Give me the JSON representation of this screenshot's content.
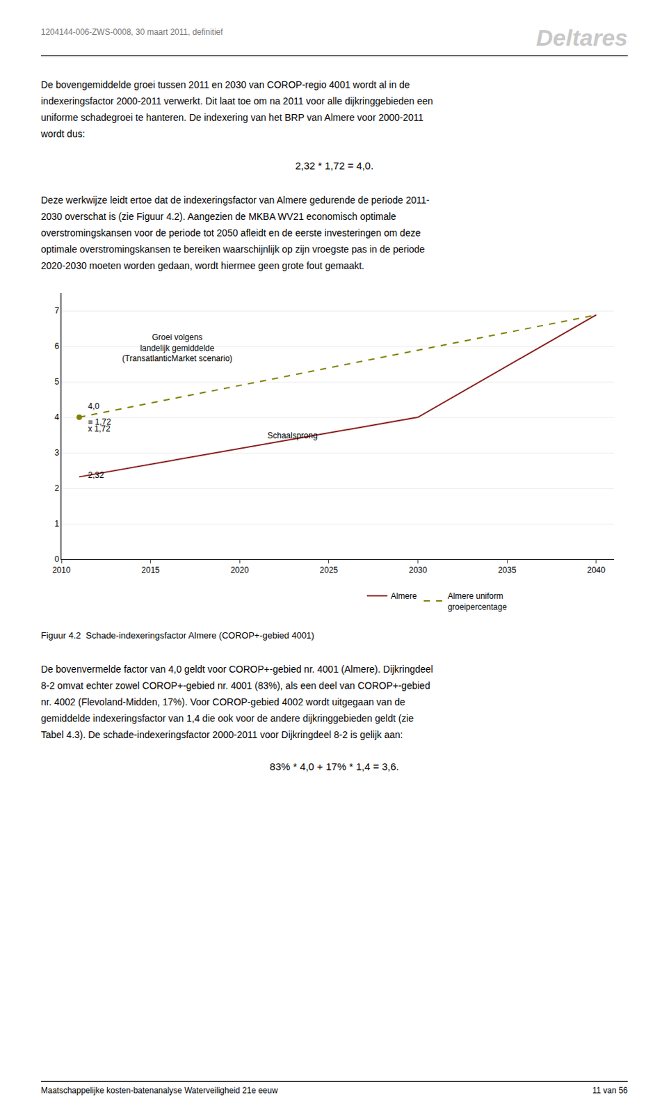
{
  "header_left": "1204144-006-ZWS-0008, 30 maart 2011, definitief",
  "header_right": "Deltares",
  "paragraphs_before": [
    [
      "De bovengemiddelde groei tussen 2011 en 2030 van COROP-regio 4001 wordt al in de",
      "indexeringsfactor 2000-2011 verwerkt. Dit laat toe om na 2011 voor alle dijkringgebieden een",
      "uniforme schadegroei te hanteren. De indexering van het BRP van Almere voor 2000-2011",
      "wordt dus:"
    ],
    [
      "Deze werkwijze leidt ertoe dat de indexeringsfactor van Almere gedurende de periode 2011-",
      "2030 overschat is (zie Figuur 4.2). Aangezien de MKBA WV21 economisch optimale",
      "overstromingskansen voor de periode tot 2050 afleidt en de eerste investeringen om deze",
      "optimale overstromingskansen te bereiken waarschijnlijk op zijn vroegste pas in de periode",
      "2020-2030 moeten worden gedaan, wordt hiermee geen grote fout gemaakt."
    ]
  ],
  "formula1": "2,32 * 1,72 = 4,0.",
  "caption": "Figuur 4.2  Schade-indexeringsfactor Almere (COROP+-gebied 4001)",
  "paragraph_after": [
    "De bovenvermelde factor van 4,0 geldt voor COROP+-gebied nr. 4001 (Almere). Dijkringdeel",
    "8-2 omvat echter zowel COROP+-gebied nr. 4001 (83%), als een deel van COROP+-gebied",
    "nr. 4002 (Flevoland-Midden, 17%). Voor COROP-gebied 4002 wordt uitgegaan van de",
    "gemiddelde indexeringsfactor van 1,4 die ook voor de andere dijkringgebieden geldt (zie",
    "Tabel 4.3). De schade-indexeringsfactor 2000-2011 voor Dijkringdeel 8-2 is gelijk aan:"
  ],
  "formula2": "83% * 4,0 + 17% * 1,4 = 3,6.",
  "footer_left": "Maatschappelijke kosten-batenanalyse Waterveiligheid 21e eeuw",
  "footer_right": "11 van 56",
  "chart_data": {
    "type": "line",
    "series": [
      {
        "name": "Almere",
        "color": "#8B2020",
        "line_style": "solid",
        "x": [
          2011,
          2030,
          2040
        ],
        "values": [
          2.32,
          4.0,
          6.88
        ]
      },
      {
        "name": "Almere uniform\ngroeipercentage",
        "color": "#808000",
        "line_style": "dashed",
        "x": [
          2011,
          2040
        ],
        "values": [
          4.0,
          6.88
        ]
      },
      {
        "type": "scatter",
        "color": "#808000",
        "marker": "circle",
        "x": [
          2011
        ],
        "values": [
          4.0
        ]
      }
    ],
    "xlim": [
      2010,
      2041
    ],
    "xticks": [
      2010,
      2015,
      2020,
      2025,
      2030,
      2035,
      2040
    ],
    "ylim": [
      0,
      7.5
    ],
    "yticks": [
      0,
      1,
      2,
      3,
      4,
      5,
      6,
      7
    ],
    "grid": "y",
    "legend": "bottom",
    "annotations": [
      {
        "text": "4,0",
        "x": 2011.4,
        "y": 4.13
      },
      {
        "text": "= 1,72",
        "x": 2011.4,
        "y": 3.7
      },
      {
        "text": "x 1,72",
        "x": 2011.4,
        "y": 3.5
      },
      {
        "text": "2,32",
        "x": 2011.4,
        "y": 2.2
      },
      {
        "text": "Schaalsprong",
        "x": 2021.5,
        "y": 3.3
      },
      {
        "text": "Groei volgens\nlandelijk gemiddelde\n(TransatlanticMarket scenario)",
        "x": 2016.5,
        "y": 5.49
      }
    ]
  }
}
